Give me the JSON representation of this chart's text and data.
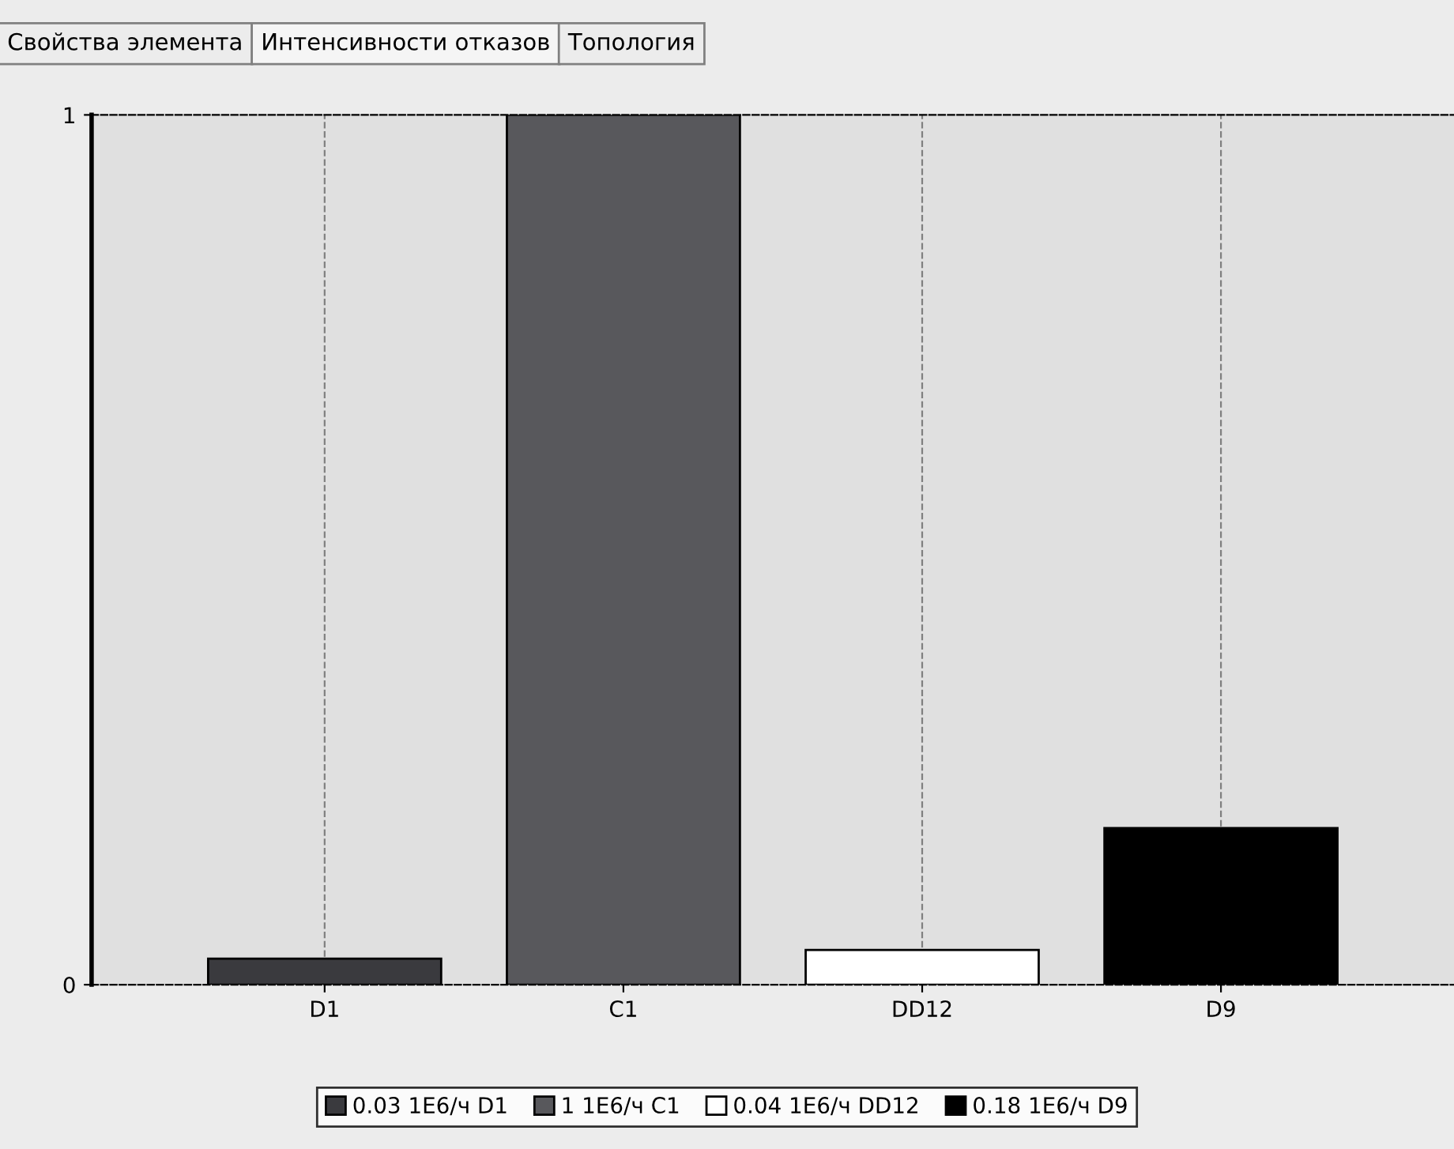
{
  "chart_data": {
    "type": "bar",
    "annotations": [
      "Свойства элемента",
      "Интенсивности отказов",
      "Топология"
    ],
    "categories": [
      "D1",
      "C1",
      "DD12",
      "D9"
    ],
    "series": [
      {
        "name": "0.03 1E6/ч D1",
        "color": "#3a3a3e",
        "values": [
          0.03,
          null,
          null,
          null
        ]
      },
      {
        "name": "1 1E6/ч C1",
        "color": "#58585c",
        "values": [
          null,
          1,
          null,
          null
        ]
      },
      {
        "name": "0.04 1E6/ч DD12",
        "color": "#ffffff",
        "values": [
          null,
          null,
          0.04,
          null
        ]
      },
      {
        "name": "0.18 1E6/ч D9",
        "color": "#000000",
        "values": [
          null,
          null,
          null,
          0.18
        ]
      }
    ],
    "ylim": [
      0,
      1
    ],
    "yticks": [
      0,
      1
    ],
    "grid": "x",
    "line_style": "dashed",
    "legend": "bottom"
  }
}
